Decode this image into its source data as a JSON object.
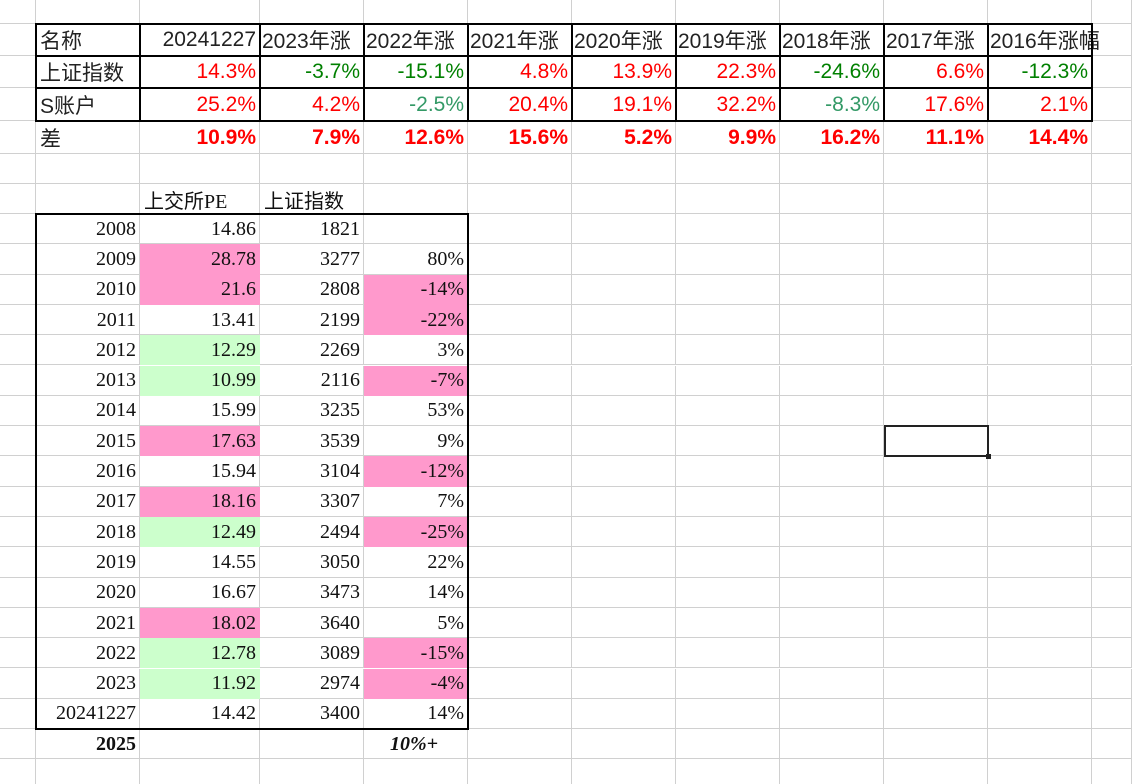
{
  "summary_table": {
    "header": [
      "名称",
      "20241227",
      "2023年涨",
      "2022年涨",
      "2021年涨",
      "2020年涨",
      "2019年涨",
      "2018年涨",
      "2017年涨",
      "2016年涨幅"
    ],
    "rows": [
      {
        "label": "上证指数",
        "values": [
          "14.3%",
          "-3.7%",
          "-15.1%",
          "4.8%",
          "13.9%",
          "22.3%",
          "-24.6%",
          "6.6%",
          "-12.3%"
        ]
      },
      {
        "label": "S账户",
        "values": [
          "25.2%",
          "4.2%",
          "-2.5%",
          "20.4%",
          "19.1%",
          "32.2%",
          "-8.3%",
          "17.6%",
          "2.1%"
        ]
      },
      {
        "label": "差",
        "values": [
          "10.9%",
          "7.9%",
          "12.6%",
          "15.6%",
          "5.2%",
          "9.9%",
          "16.2%",
          "11.1%",
          "14.4%"
        ]
      }
    ]
  },
  "pe_table": {
    "header": [
      "上交所PE",
      "上证指数"
    ],
    "rows": [
      {
        "year": "2008",
        "pe": "14.86",
        "index": "1821",
        "change": "",
        "pe_fill": "",
        "change_fill": ""
      },
      {
        "year": "2009",
        "pe": "28.78",
        "index": "3277",
        "change": "80%",
        "pe_fill": "pink",
        "change_fill": ""
      },
      {
        "year": "2010",
        "pe": "21.6",
        "index": "2808",
        "change": "-14%",
        "pe_fill": "pink",
        "change_fill": "pink"
      },
      {
        "year": "2011",
        "pe": "13.41",
        "index": "2199",
        "change": "-22%",
        "pe_fill": "",
        "change_fill": "pink"
      },
      {
        "year": "2012",
        "pe": "12.29",
        "index": "2269",
        "change": "3%",
        "pe_fill": "green",
        "change_fill": ""
      },
      {
        "year": "2013",
        "pe": "10.99",
        "index": "2116",
        "change": "-7%",
        "pe_fill": "green",
        "change_fill": "pink"
      },
      {
        "year": "2014",
        "pe": "15.99",
        "index": "3235",
        "change": "53%",
        "pe_fill": "",
        "change_fill": ""
      },
      {
        "year": "2015",
        "pe": "17.63",
        "index": "3539",
        "change": "9%",
        "pe_fill": "pink",
        "change_fill": ""
      },
      {
        "year": "2016",
        "pe": "15.94",
        "index": "3104",
        "change": "-12%",
        "pe_fill": "",
        "change_fill": "pink"
      },
      {
        "year": "2017",
        "pe": "18.16",
        "index": "3307",
        "change": "7%",
        "pe_fill": "pink",
        "change_fill": ""
      },
      {
        "year": "2018",
        "pe": "12.49",
        "index": "2494",
        "change": "-25%",
        "pe_fill": "green",
        "change_fill": "pink"
      },
      {
        "year": "2019",
        "pe": "14.55",
        "index": "3050",
        "change": "22%",
        "pe_fill": "",
        "change_fill": ""
      },
      {
        "year": "2020",
        "pe": "16.67",
        "index": "3473",
        "change": "14%",
        "pe_fill": "",
        "change_fill": ""
      },
      {
        "year": "2021",
        "pe": "18.02",
        "index": "3640",
        "change": "5%",
        "pe_fill": "pink",
        "change_fill": ""
      },
      {
        "year": "2022",
        "pe": "12.78",
        "index": "3089",
        "change": "-15%",
        "pe_fill": "green",
        "change_fill": "pink"
      },
      {
        "year": "2023",
        "pe": "11.92",
        "index": "2974",
        "change": "-4%",
        "pe_fill": "green",
        "change_fill": "pink"
      },
      {
        "year": "20241227",
        "pe": "14.42",
        "index": "3400",
        "change": "14%",
        "pe_fill": "",
        "change_fill": ""
      }
    ],
    "forecast": {
      "year": "2025",
      "change": "10%+"
    }
  },
  "colors": {
    "positive": "#ff0000",
    "negative_index": "#008000",
    "negative_account": "#339966",
    "fill_pink": "#ff99cc",
    "fill_green": "#ccffcc"
  }
}
